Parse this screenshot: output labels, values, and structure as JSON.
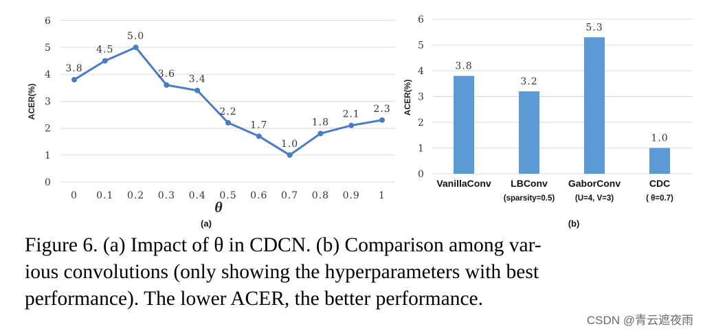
{
  "colors": {
    "line": "#4a7cc4",
    "bar": "#5b9bd5",
    "grid": "#d9d9d9"
  },
  "chart_data": [
    {
      "type": "line",
      "panel_label": "(a)",
      "xlabel": "θ",
      "ylabel": "ACER(%)",
      "ylim": [
        0,
        6
      ],
      "yticks": [
        "0",
        "1",
        "2",
        "3",
        "4",
        "5",
        "6"
      ],
      "categories": [
        "0",
        "0.1",
        "0.2",
        "0.3",
        "0.4",
        "0.5",
        "0.6",
        "0.7",
        "0.8",
        "0.9",
        "1"
      ],
      "values": [
        3.8,
        4.5,
        5.0,
        3.6,
        3.4,
        2.2,
        1.7,
        1.0,
        1.8,
        2.1,
        2.3
      ],
      "value_labels": [
        "3.8",
        "4.5",
        "5.0",
        "3.6",
        "3.4",
        "2.2",
        "1.7",
        "1.0",
        "1.8",
        "2.1",
        "2.3"
      ]
    },
    {
      "type": "bar",
      "panel_label": "(b)",
      "ylabel": "ACER(%)",
      "ylim": [
        0,
        6
      ],
      "yticks": [
        "0",
        "1",
        "2",
        "3",
        "4",
        "5",
        "6"
      ],
      "categories": [
        "VanillaConv",
        "LBConv",
        "GaborConv",
        "CDC"
      ],
      "subcategories": [
        "",
        "(sparsity=0.5)",
        "(U=4, V=3)",
        "( θ=0.7)"
      ],
      "values": [
        3.8,
        3.2,
        5.3,
        1.0
      ],
      "value_labels": [
        "3.8",
        "3.2",
        "5.3",
        "1.0"
      ]
    }
  ],
  "caption": {
    "lines": [
      "Figure 6.   (a) Impact of θ in CDCN. (b) Comparison among var-",
      "ious convolutions (only showing the hyperparameters with best",
      "performance). The lower ACER, the better performance."
    ]
  },
  "watermark": "CSDN @青云遮夜雨"
}
